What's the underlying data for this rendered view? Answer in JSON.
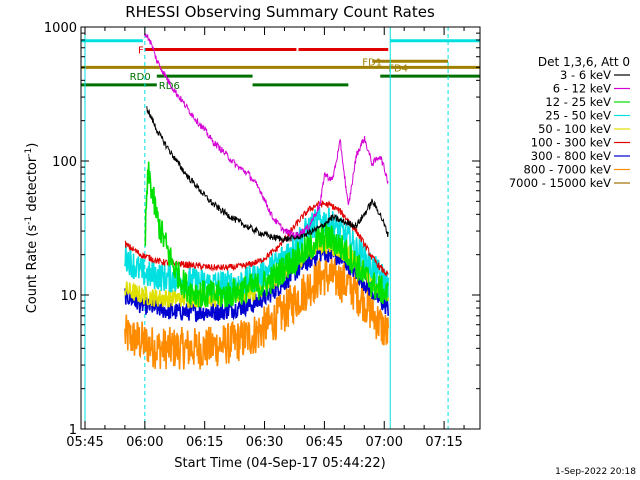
{
  "chart_data": {
    "type": "line",
    "title": "RHESSI Observing Summary Count Rates",
    "xlabel": "Start Time (04-Sep-17 05:44:22)",
    "ylabel_main": "Count Rate (s",
    "ylabel_sup1": "-1",
    "ylabel_mid": " detector",
    "ylabel_sup2": "-1",
    "ylabel_end": ")",
    "yscale": "log",
    "ylim": [
      1,
      1000
    ],
    "xlim_minutes": [
      -1,
      99
    ],
    "x_ticks": [
      {
        "m": 0,
        "label": "05:45"
      },
      {
        "m": 15,
        "label": "06:00"
      },
      {
        "m": 30,
        "label": "06:15"
      },
      {
        "m": 45,
        "label": "06:30"
      },
      {
        "m": 60,
        "label": "06:45"
      },
      {
        "m": 75,
        "label": "07:00"
      },
      {
        "m": 90,
        "label": "07:15"
      }
    ],
    "y_ticks": [
      {
        "v": 1,
        "label": "1"
      },
      {
        "v": 10,
        "label": "10"
      },
      {
        "v": 100,
        "label": "100"
      },
      {
        "v": 1000,
        "label": "1000"
      }
    ],
    "legend_header": "Det 1,3,6, Att 0",
    "legend_position": "right",
    "timestamp": "1-Sep-2022 20:18",
    "series": [
      {
        "name": "3 - 6 keV",
        "color": "#000000",
        "x": [
          15.5,
          16,
          17,
          18,
          20,
          22,
          24,
          26,
          28,
          30,
          32,
          35,
          38,
          41,
          44,
          47,
          50,
          53,
          56,
          59,
          62,
          65,
          68,
          70,
          72,
          74,
          76
        ],
        "y": [
          250,
          230,
          200,
          170,
          135,
          110,
          90,
          75,
          65,
          55,
          48,
          41,
          36,
          32,
          29,
          27,
          26,
          27,
          29,
          32,
          38,
          35,
          33,
          40,
          50,
          40,
          28
        ]
      },
      {
        "name": "6 - 12 keV",
        "color": "#d400d4",
        "x": [
          15,
          16,
          17,
          18,
          20,
          22,
          24,
          26,
          28,
          30,
          32,
          35,
          38,
          41,
          44,
          47,
          50,
          53,
          56,
          59,
          60,
          62,
          64,
          66,
          68,
          70,
          72,
          74,
          76
        ],
        "y": [
          900,
          820,
          700,
          560,
          440,
          350,
          290,
          240,
          200,
          170,
          140,
          115,
          92,
          80,
          60,
          38,
          30,
          28,
          32,
          48,
          80,
          72,
          140,
          45,
          110,
          148,
          95,
          110,
          70
        ]
      },
      {
        "name": "12 - 25 keV",
        "color": "#00e000",
        "x": [
          15,
          15.5,
          16,
          17,
          18,
          19,
          20,
          21,
          22,
          24,
          26,
          30,
          35,
          40,
          45,
          48,
          50,
          53,
          56,
          58,
          60,
          62,
          64,
          66,
          68,
          70,
          72,
          74,
          76
        ],
        "y": [
          20,
          60,
          80,
          55,
          38,
          30,
          25,
          20,
          17,
          13,
          11,
          10,
          10,
          11,
          12,
          14,
          16,
          19,
          22,
          25,
          27,
          26,
          23,
          20,
          17,
          14,
          12,
          11,
          10
        ]
      },
      {
        "name": "25 - 50 keV",
        "color": "#00e0e0",
        "x": [
          10,
          12,
          14,
          16,
          18,
          20,
          24,
          28,
          32,
          36,
          40,
          44,
          48,
          50,
          52,
          54,
          56,
          58,
          60,
          62,
          64,
          66,
          68,
          70,
          72,
          74,
          76
        ],
        "y": [
          20,
          17,
          15,
          14,
          14,
          13.5,
          13,
          12.5,
          12,
          12,
          12.5,
          14,
          17,
          20,
          23,
          27,
          31,
          35,
          36,
          34,
          30,
          26,
          22,
          19,
          16,
          14,
          12
        ]
      },
      {
        "name": "50 - 100 keV",
        "color": "#e0e000",
        "x": [
          10,
          14,
          18,
          22,
          26,
          30,
          34,
          38,
          42,
          46,
          50,
          54,
          58,
          60,
          62,
          66,
          70,
          74,
          76
        ],
        "y": [
          11,
          10,
          9.5,
          9.5,
          9.5,
          9.5,
          9.5,
          10,
          10.5,
          12,
          15,
          19,
          23,
          24,
          23,
          20,
          15,
          11,
          10
        ]
      },
      {
        "name": "100 - 300 keV",
        "color": "#e00000",
        "x": [
          10,
          12,
          14,
          16,
          18,
          20,
          24,
          28,
          32,
          36,
          40,
          44,
          48,
          50,
          52,
          54,
          56,
          58,
          60,
          62,
          64,
          66,
          68,
          70,
          72,
          74,
          76
        ],
        "y": [
          24,
          22,
          20,
          19,
          18,
          17.5,
          17,
          16.5,
          16,
          16,
          16.5,
          18,
          22,
          26,
          31,
          37,
          43,
          47,
          48,
          46,
          42,
          36,
          30,
          24,
          19,
          16,
          14
        ]
      },
      {
        "name": "300 - 800 keV",
        "color": "#0000d0",
        "x": [
          10,
          14,
          18,
          22,
          26,
          30,
          34,
          38,
          42,
          46,
          50,
          54,
          58,
          60,
          62,
          66,
          70,
          74,
          76
        ],
        "y": [
          10,
          8.5,
          8,
          7.5,
          7.5,
          7.5,
          7.5,
          8,
          8.5,
          10,
          12.5,
          16,
          20,
          21,
          20,
          17,
          12.5,
          9,
          8
        ]
      },
      {
        "name": "800 - 7000 keV",
        "color": "#ff8c00",
        "x": [
          10,
          14,
          18,
          22,
          26,
          30,
          34,
          38,
          42,
          46,
          50,
          54,
          58,
          60,
          62,
          66,
          70,
          74,
          76
        ],
        "y": [
          5,
          4.5,
          4,
          4,
          4,
          4,
          4.2,
          4.5,
          5,
          6,
          7.5,
          10,
          13,
          14,
          13.5,
          12,
          9,
          6,
          5
        ]
      },
      {
        "name": "7000 - 15000 keV",
        "color": "#a07000",
        "x": [],
        "y": []
      }
    ],
    "flags": [
      {
        "label": "F",
        "color": "#e00000",
        "y": 680,
        "segments": [
          [
            15,
            53
          ],
          [
            53.5,
            76
          ]
        ],
        "label_x": 13.3
      },
      {
        "label": "FD1",
        "color": "#a08000",
        "y": 555,
        "segments": [
          [
            72,
            91
          ]
        ],
        "label_x": 69.5
      },
      {
        "label": "FD4",
        "color": "#a08000",
        "y": 500,
        "segments": [
          [
            -1,
            99
          ]
        ],
        "label_x": 76
      },
      {
        "label": "RD0",
        "color": "#007000",
        "y": 430,
        "segments": [
          [
            18,
            42
          ],
          [
            74,
            99
          ]
        ],
        "label_x": 11.2
      },
      {
        "label": "RD6",
        "color": "#007000",
        "y": 370,
        "segments": [
          [
            -1,
            18
          ],
          [
            42,
            66
          ]
        ],
        "label_x": 18.5
      },
      {
        "label": "",
        "color": "#00e0e0",
        "y": 790,
        "segments": [
          [
            -1,
            14.5
          ],
          [
            76.5,
            99
          ]
        ],
        "label_x": 0
      }
    ],
    "vlines": [
      {
        "m": 0,
        "color": "#00e0e0",
        "style": "solid"
      },
      {
        "m": 15,
        "color": "#00e0e0",
        "style": "dashed"
      },
      {
        "m": 76.5,
        "color": "#00e0e0",
        "style": "solid"
      },
      {
        "m": 91,
        "color": "#00e0e0",
        "style": "dashed"
      }
    ]
  }
}
